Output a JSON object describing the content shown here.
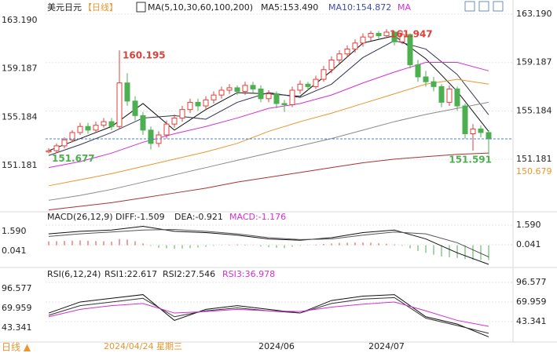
{
  "header": {
    "symbol": "美元日元",
    "period": "【日线】",
    "ma_title": "MA(5,10,30,60,100,200)",
    "ma5": "MA5:153.490",
    "ma10": "MA10:154.872",
    "ma_more": "MA",
    "macd_title": "MACD(26,12,9)",
    "diff": "DIFF:-1.509",
    "dea": "DEA:-0.921",
    "macd": "MACD:-1.176",
    "rsi_title": "RSI(6,12,24)",
    "rsi1": "RSI1:22.617",
    "rsi2": "RSI2:27.546",
    "rsi3": "RSI3:36.978"
  },
  "footer": {
    "period_button": "日线 ▲"
  },
  "chart_data": [
    {
      "type": "candlestick",
      "categories": [
        null,
        null,
        null,
        null,
        null,
        null,
        null,
        null,
        null,
        null,
        null,
        null,
        "2024/04/24 星期三",
        null,
        null,
        null,
        null,
        null,
        null,
        null,
        null,
        null,
        null,
        null,
        null,
        null,
        null,
        null,
        null,
        "2024/06",
        null,
        null,
        null,
        null,
        null,
        null,
        null,
        null,
        null,
        null,
        null,
        null,
        null,
        "2024/07",
        null,
        null,
        null,
        null,
        null,
        null,
        null,
        null,
        null,
        null,
        null,
        null,
        null
      ],
      "open": [
        151.8,
        151.9,
        152.3,
        152.8,
        153.4,
        153.9,
        153.6,
        154.0,
        154.3,
        153.9,
        157.5,
        156.0,
        154.8,
        153.6,
        152.5,
        153.2,
        154.1,
        154.6,
        155.3,
        155.9,
        155.6,
        156.1,
        156.5,
        156.9,
        157.1,
        156.8,
        157.3,
        157.0,
        156.2,
        156.6,
        155.8,
        155.7,
        156.9,
        157.4,
        157.2,
        157.8,
        158.6,
        159.4,
        159.9,
        160.3,
        160.8,
        161.3,
        161.6,
        161.4,
        161.7,
        160.9,
        161.5,
        159.0,
        158.0,
        157.6,
        157.2,
        155.9,
        157.0,
        155.6,
        153.3,
        153.7,
        153.4
      ],
      "high": [
        152.1,
        152.5,
        153.0,
        153.6,
        154.2,
        154.2,
        154.3,
        154.6,
        154.6,
        160.195,
        158.3,
        156.4,
        155.1,
        153.9,
        153.5,
        154.4,
        154.9,
        155.6,
        156.2,
        156.2,
        156.4,
        156.8,
        157.2,
        157.4,
        157.3,
        157.6,
        157.6,
        157.3,
        156.9,
        156.8,
        156.1,
        157.2,
        157.7,
        157.6,
        158.1,
        158.9,
        159.7,
        160.2,
        160.6,
        161.1,
        161.6,
        161.8,
        161.8,
        161.947,
        161.8,
        161.8,
        161.6,
        159.4,
        158.5,
        158.0,
        157.4,
        157.3,
        157.2,
        155.8,
        154.1,
        154.0,
        153.6
      ],
      "low": [
        151.677,
        151.7,
        152.1,
        152.6,
        153.2,
        153.3,
        153.4,
        153.8,
        153.6,
        153.7,
        155.6,
        154.4,
        153.2,
        152.0,
        152.2,
        152.9,
        153.8,
        154.3,
        155.0,
        155.2,
        155.3,
        155.8,
        156.2,
        156.6,
        156.5,
        156.5,
        156.7,
        155.9,
        155.9,
        155.4,
        155.1,
        155.5,
        156.6,
        156.9,
        157.0,
        157.6,
        158.3,
        159.1,
        159.6,
        160.0,
        160.5,
        161.0,
        161.1,
        161.2,
        160.6,
        160.7,
        158.7,
        157.6,
        157.2,
        156.8,
        155.5,
        155.6,
        155.2,
        152.9,
        151.9,
        153.0,
        151.591
      ],
      "close": [
        151.9,
        152.3,
        152.8,
        153.4,
        153.9,
        153.6,
        154.0,
        154.3,
        153.9,
        157.5,
        156.0,
        154.8,
        153.6,
        152.5,
        153.2,
        154.1,
        154.6,
        155.3,
        155.9,
        155.6,
        156.1,
        156.5,
        156.9,
        157.1,
        156.8,
        157.3,
        157.0,
        156.2,
        156.6,
        155.8,
        155.7,
        156.9,
        157.4,
        157.2,
        157.8,
        158.6,
        159.4,
        159.9,
        160.3,
        160.8,
        161.3,
        161.6,
        161.4,
        161.7,
        160.9,
        161.5,
        159.0,
        158.0,
        157.6,
        157.2,
        155.9,
        157.0,
        155.6,
        153.3,
        153.7,
        153.4,
        152.88
      ],
      "up_color": "#e0403a",
      "down_color": "#4caf50",
      "last_price_color": "#4a7fd0",
      "ylim": [
        146.977,
        163.838
      ],
      "yticks": [
        {
          "value": 163.19,
          "label": "163.190"
        },
        159.187,
        155.184,
        151.181
      ],
      "grid": true,
      "annotations": [
        {
          "index": 9,
          "value": 160.195,
          "color": "#d9413a"
        },
        {
          "index": 43,
          "value": 161.947,
          "color": "#d9413a"
        },
        {
          "index": 0,
          "value": 151.677,
          "color": "#4caf50"
        },
        {
          "index": 56,
          "value": 151.591,
          "color": "#4caf50"
        }
      ],
      "side_labels": [
        {
          "value": 150.679,
          "color": "#e8962e"
        }
      ],
      "line_x": [
        0,
        4,
        8,
        12,
        16,
        20,
        24,
        28,
        32,
        36,
        40,
        44,
        48,
        52,
        56
      ],
      "lines": [
        {
          "color": "#111111",
          "values": [
            151.9,
            152.9,
            153.9,
            155.8,
            153.6,
            155.3,
            156.7,
            156.6,
            156.4,
            158.5,
            160.8,
            161.4,
            159.5,
            156.8,
            153.49
          ]
        },
        {
          "color": "#333355",
          "values": [
            151.5,
            152.4,
            153.4,
            154.6,
            154.8,
            154.5,
            155.9,
            156.7,
            156.3,
            157.4,
            159.6,
            161.0,
            160.3,
            158.2,
            154.872
          ]
        },
        {
          "color": "#d42ed4",
          "values": [
            150.5,
            151.0,
            151.7,
            152.6,
            153.3,
            153.9,
            154.6,
            155.4,
            155.8,
            156.5,
            157.5,
            158.4,
            159.2,
            159.2,
            158.5
          ]
        },
        {
          "color": "#e8962e",
          "values": [
            149.0,
            149.5,
            150.0,
            150.6,
            151.2,
            151.8,
            152.5,
            153.5,
            154.3,
            155.0,
            155.8,
            156.6,
            157.4,
            157.8,
            157.4
          ]
        },
        {
          "color": "#8a8a8a",
          "values": [
            147.8,
            148.2,
            148.7,
            149.3,
            149.9,
            150.5,
            151.1,
            151.7,
            152.3,
            152.9,
            153.6,
            154.3,
            154.9,
            155.4,
            155.9
          ]
        },
        {
          "color": "#a83232",
          "values": [
            147.0,
            147.3,
            147.6,
            148.0,
            148.4,
            148.8,
            149.3,
            149.7,
            150.1,
            150.5,
            150.9,
            151.2,
            151.4,
            151.6,
            151.7
          ]
        }
      ]
    },
    {
      "type": "macd",
      "values": [
        0.3,
        0.32,
        0.34,
        0.36,
        0.38,
        0.35,
        0.33,
        0.32,
        0.28,
        0.5,
        0.45,
        0.32,
        0.15,
        -0.05,
        -0.2,
        -0.25,
        -0.28,
        -0.26,
        -0.22,
        -0.18,
        -0.12,
        -0.06,
        -0.02,
        0.04,
        0.06,
        0.05,
        0.02,
        -0.1,
        -0.15,
        -0.2,
        -0.22,
        -0.12,
        -0.05,
        0.02,
        0.05,
        0.1,
        0.14,
        0.18,
        0.2,
        0.22,
        0.22,
        0.2,
        0.16,
        0.12,
        0.06,
        -0.05,
        -0.25,
        -0.45,
        -0.6,
        -0.75,
        -0.9,
        -0.95,
        -1.0,
        -1.1,
        -1.15,
        -1.18,
        -1.176
      ],
      "up_color": "#e0403a",
      "down_color": "#4caf50",
      "ylim": [
        -1.696,
        2.024
      ],
      "yticks": [
        {
          "value": 1.59,
          "label": "1.590"
        },
        0.041
      ],
      "grid": true,
      "line_x": [
        0,
        4,
        8,
        12,
        16,
        20,
        24,
        28,
        32,
        36,
        40,
        44,
        48,
        52,
        56
      ],
      "lines": [
        {
          "color": "#111111",
          "values": [
            0.9,
            1.1,
            1.2,
            1.5,
            1.1,
            1.0,
            0.8,
            0.5,
            0.4,
            0.6,
            1.0,
            1.2,
            0.5,
            -0.6,
            -1.509
          ]
        },
        {
          "color": "#555555",
          "values": [
            0.7,
            0.9,
            1.05,
            1.2,
            1.25,
            1.1,
            0.9,
            0.6,
            0.45,
            0.5,
            0.8,
            1.05,
            0.9,
            0.2,
            -0.921
          ]
        }
      ]
    },
    {
      "type": "line",
      "ylim": [
        16.72,
        114.68
      ],
      "yticks": [
        96.577,
        69.959,
        43.341
      ],
      "grid": true,
      "line_x": [
        0,
        4,
        8,
        12,
        16,
        20,
        24,
        28,
        32,
        36,
        40,
        44,
        48,
        52,
        56
      ],
      "lines": [
        {
          "color": "#111111",
          "values": [
            55,
            70,
            75,
            80,
            45,
            60,
            65,
            60,
            55,
            72,
            78,
            80,
            50,
            40,
            22.617
          ]
        },
        {
          "color": "#333333",
          "values": [
            52,
            65,
            70,
            75,
            50,
            58,
            62,
            58,
            55,
            68,
            74,
            76,
            48,
            38,
            27.546
          ]
        },
        {
          "color": "#d42ed4",
          "values": [
            50,
            60,
            65,
            68,
            55,
            57,
            60,
            58,
            57,
            63,
            67,
            70,
            58,
            45,
            36.978
          ]
        }
      ]
    }
  ]
}
